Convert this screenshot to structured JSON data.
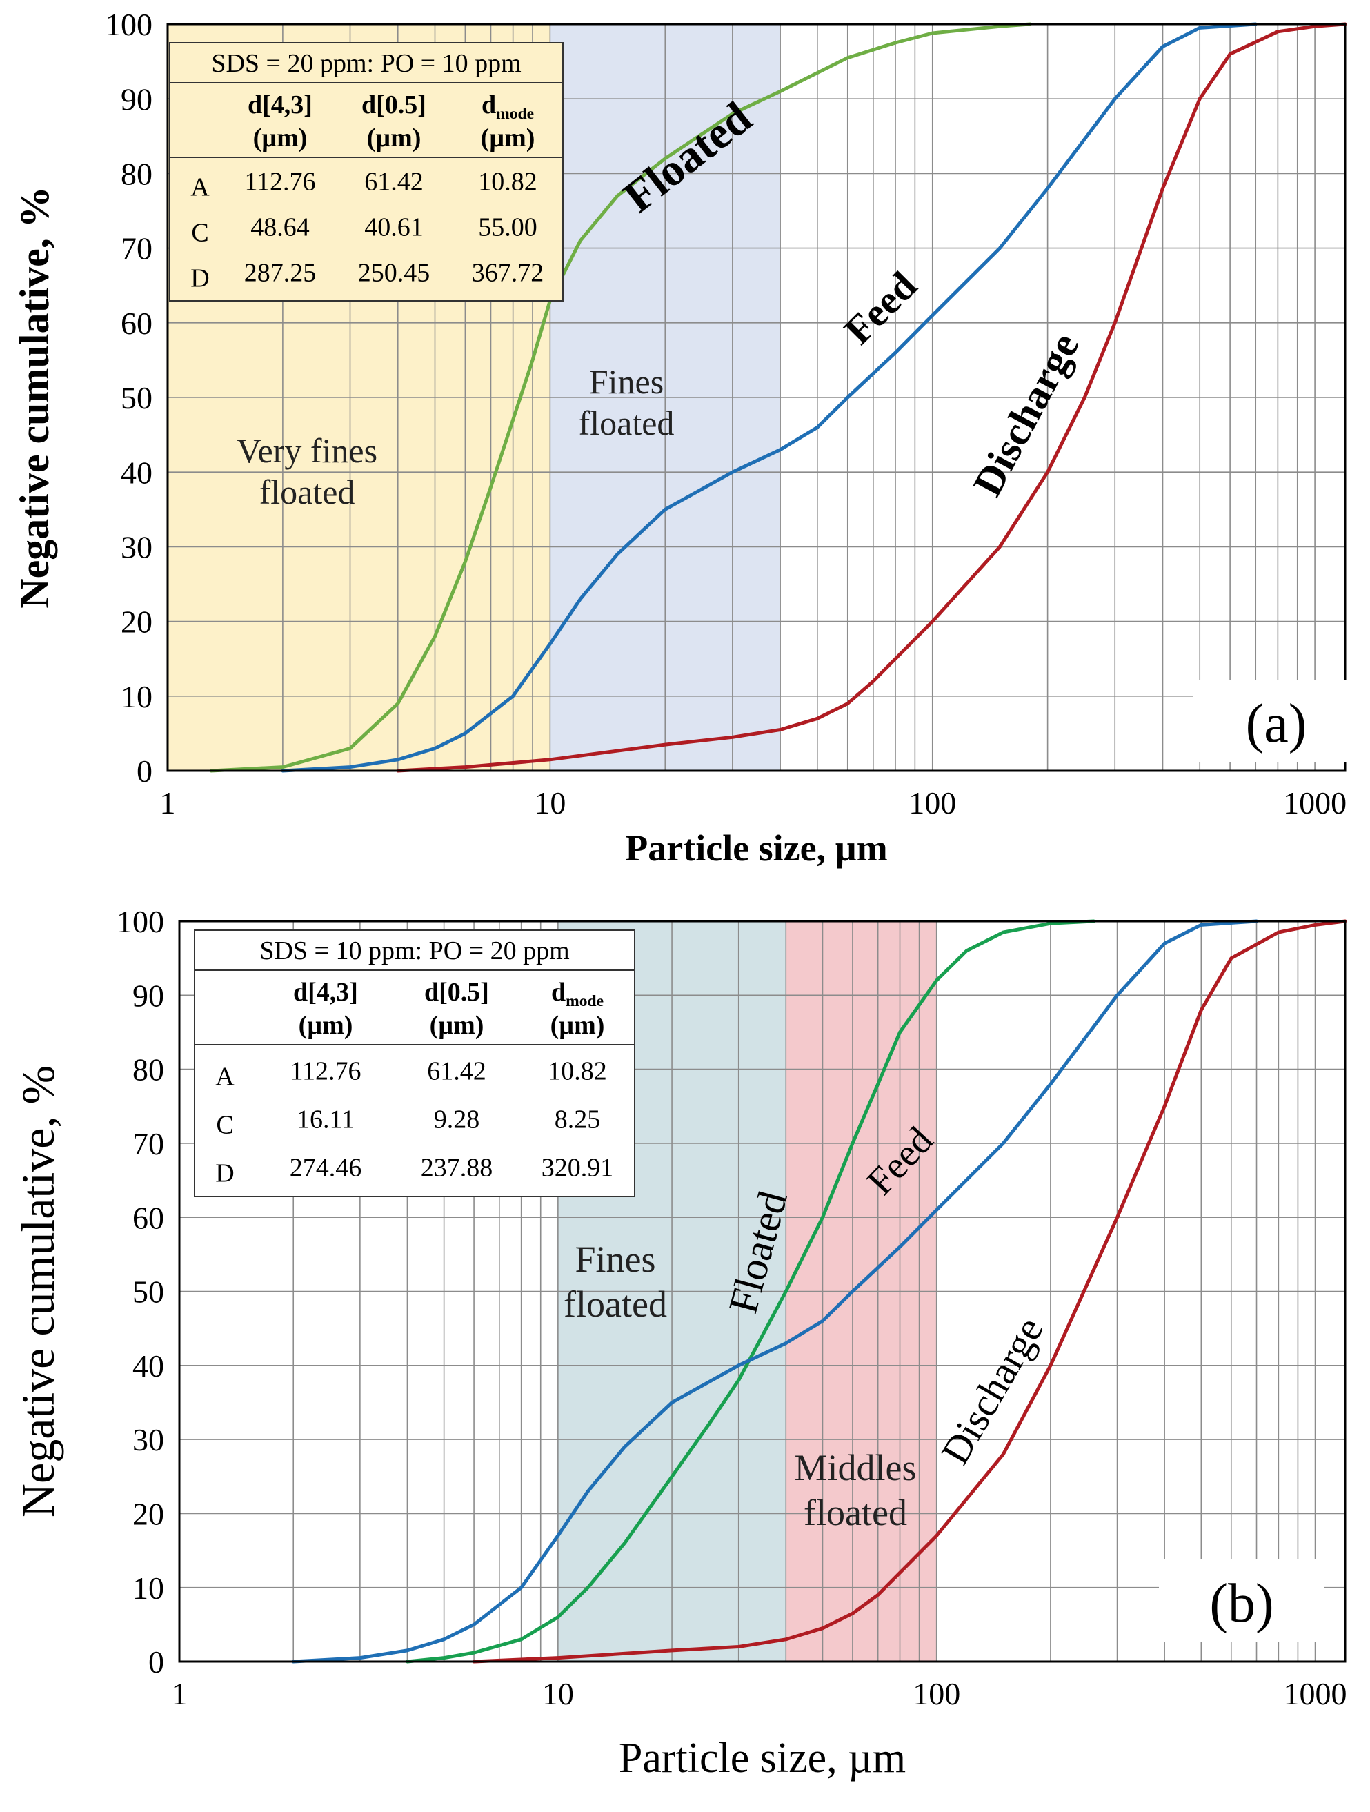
{
  "colors": {
    "feed": "#1f6fb5",
    "discharge": "#b01c22",
    "floated_a": "#6fae45",
    "floated_b": "#18a050",
    "very_fines_band": "#fdf1c9",
    "fines_band_a": "#dde4f2",
    "fines_band_b": "#d2e2e6",
    "middles_band": "#f4c9cc",
    "grid": "#8c8c8c",
    "axis": "#000000"
  },
  "chart_data": [
    {
      "type": "line",
      "panel_label": "(a)",
      "xlabel": "Particle size, µm",
      "ylabel": "Negative cumulative, %",
      "xscale": "log",
      "xlim": [
        1,
        1200
      ],
      "ylim": [
        0,
        100
      ],
      "xticks": [
        1,
        10,
        100,
        1000
      ],
      "xtick_labels": [
        "1",
        "10",
        "100",
        "1000"
      ],
      "yticks": [
        0,
        10,
        20,
        30,
        40,
        50,
        60,
        70,
        80,
        90,
        100
      ],
      "ytick_labels": [
        "0",
        "10",
        "20",
        "30",
        "40",
        "50",
        "60",
        "70",
        "80",
        "90",
        "100"
      ],
      "grid": true,
      "bands": [
        {
          "label": "Very fines\nfloated",
          "x0": 1,
          "x1": 10,
          "color": "#fdf1c9"
        },
        {
          "label": "Fines\nfloated",
          "x0": 10,
          "x1": 40,
          "color": "#dde4f2"
        }
      ],
      "series": [
        {
          "name": "Floated",
          "color": "#6fae45",
          "label_style": "bold",
          "x": [
            1.3,
            2,
            3,
            4,
            5,
            6,
            7,
            8,
            9,
            10,
            12,
            15,
            20,
            30,
            40,
            60,
            80,
            100,
            150,
            180
          ],
          "y": [
            0,
            0.5,
            3,
            9,
            18,
            28,
            38,
            47,
            55,
            63,
            71,
            77,
            82,
            88,
            91,
            95.5,
            97.5,
            98.8,
            99.7,
            100
          ]
        },
        {
          "name": "Feed",
          "color": "#1f6fb5",
          "label_style": "bold",
          "x": [
            2,
            3,
            4,
            5,
            6,
            8,
            10,
            12,
            15,
            20,
            30,
            40,
            50,
            60,
            80,
            100,
            150,
            200,
            300,
            400,
            500,
            700
          ],
          "y": [
            0,
            0.5,
            1.5,
            3,
            5,
            10,
            17,
            23,
            29,
            35,
            40,
            43,
            46,
            50,
            56,
            61,
            70,
            78,
            90,
            97,
            99.5,
            100
          ]
        },
        {
          "name": "Discharge",
          "color": "#b01c22",
          "label_style": "bold",
          "x": [
            4,
            6,
            10,
            20,
            30,
            40,
            50,
            60,
            70,
            80,
            100,
            150,
            200,
            250,
            300,
            400,
            500,
            600,
            800,
            1000,
            1200
          ],
          "y": [
            0,
            0.5,
            1.5,
            3.5,
            4.5,
            5.5,
            7,
            9,
            12,
            15,
            20,
            30,
            40,
            50,
            60,
            78,
            90,
            96,
            99,
            99.7,
            100
          ]
        }
      ],
      "table": {
        "title": "SDS = 20 ppm: PO = 10 ppm",
        "headers": [
          "",
          "d[4,3]",
          "d[0.5]",
          "d"
        ],
        "header_sub": [
          "",
          "",
          "",
          "mode"
        ],
        "units": [
          "",
          "(µm)",
          "(µm)",
          "(µm)"
        ],
        "rows": [
          [
            "A",
            "112.76",
            "61.42",
            "10.82"
          ],
          [
            "C",
            "48.64",
            "40.61",
            "55.00"
          ],
          [
            "D",
            "287.25",
            "250.45",
            "367.72"
          ]
        ]
      }
    },
    {
      "type": "line",
      "panel_label": "(b)",
      "xlabel": "Particle size, µm",
      "ylabel": "Negative cumulative, %",
      "xscale": "log",
      "xlim": [
        1,
        1200
      ],
      "ylim": [
        0,
        100
      ],
      "xticks": [
        1,
        10,
        100,
        1000
      ],
      "xtick_labels": [
        "1",
        "10",
        "100",
        "1000"
      ],
      "yticks": [
        0,
        10,
        20,
        30,
        40,
        50,
        60,
        70,
        80,
        90,
        100
      ],
      "ytick_labels": [
        "0",
        "10",
        "20",
        "30",
        "40",
        "50",
        "60",
        "70",
        "80",
        "90",
        "100"
      ],
      "grid": true,
      "bands": [
        {
          "label": "Fines\nfloated",
          "x0": 10,
          "x1": 40,
          "color": "#d2e2e6"
        },
        {
          "label": "Middles\nfloated",
          "x0": 40,
          "x1": 100,
          "color": "#f4c9cc"
        }
      ],
      "series": [
        {
          "name": "Floated",
          "color": "#18a050",
          "label_style": "normal",
          "x": [
            4,
            5,
            6,
            8,
            10,
            12,
            15,
            20,
            25,
            30,
            40,
            50,
            60,
            70,
            80,
            100,
            120,
            150,
            200,
            260
          ],
          "y": [
            0,
            0.5,
            1.2,
            3,
            6,
            10,
            16,
            25,
            32,
            38,
            50,
            60,
            70,
            78,
            85,
            92,
            96,
            98.5,
            99.7,
            100
          ]
        },
        {
          "name": "Feed",
          "color": "#1f6fb5",
          "label_style": "normal",
          "x": [
            2,
            3,
            4,
            5,
            6,
            8,
            10,
            12,
            15,
            20,
            30,
            40,
            50,
            60,
            80,
            100,
            150,
            200,
            300,
            400,
            500,
            700
          ],
          "y": [
            0,
            0.5,
            1.5,
            3,
            5,
            10,
            17,
            23,
            29,
            35,
            40,
            43,
            46,
            50,
            56,
            61,
            70,
            78,
            90,
            97,
            99.5,
            100
          ]
        },
        {
          "name": "Discharge",
          "color": "#b01c22",
          "label_style": "normal",
          "x": [
            6,
            10,
            20,
            30,
            40,
            50,
            60,
            70,
            80,
            100,
            150,
            200,
            250,
            300,
            400,
            500,
            600,
            800,
            1000,
            1200
          ],
          "y": [
            0,
            0.5,
            1.5,
            2,
            3,
            4.5,
            6.5,
            9,
            12,
            17,
            28,
            40,
            51,
            60,
            75,
            88,
            95,
            98.5,
            99.5,
            100
          ]
        }
      ],
      "table": {
        "title": "SDS = 10 ppm: PO = 20 ppm",
        "headers": [
          "",
          "d[4,3]",
          "d[0.5]",
          "d"
        ],
        "header_sub": [
          "",
          "",
          "",
          "mode"
        ],
        "units": [
          "",
          "(µm)",
          "(µm)",
          "(µm)"
        ],
        "rows": [
          [
            "A",
            "112.76",
            "61.42",
            "10.82"
          ],
          [
            "C",
            "16.11",
            "9.28",
            "8.25"
          ],
          [
            "D",
            "274.46",
            "237.88",
            "320.91"
          ]
        ]
      }
    }
  ]
}
